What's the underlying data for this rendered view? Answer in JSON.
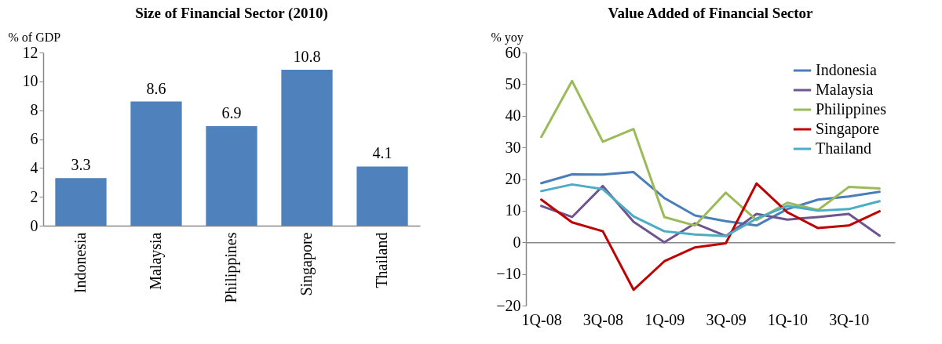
{
  "chart_data": [
    {
      "type": "bar",
      "title": "Size of Financial Sector (2010)",
      "ylabel": "% of GDP",
      "categories": [
        "Indonesia",
        "Malaysia",
        "Philippines",
        "Singapore",
        "Thailand"
      ],
      "values": [
        3.3,
        8.6,
        6.9,
        10.8,
        4.1
      ],
      "color": "#4f81bd",
      "ylim": [
        0,
        12
      ],
      "yticks": [
        0,
        2,
        4,
        6,
        8,
        10,
        12
      ],
      "data_labels": true
    },
    {
      "type": "line",
      "title": "Value Added of Financial Sector",
      "ylabel": "% yoy",
      "categories": [
        "1Q-08",
        null,
        "3Q-08",
        null,
        "1Q-09",
        null,
        "3Q-09",
        null,
        "1Q-10",
        null,
        "3Q-10",
        null
      ],
      "ylim": [
        -20,
        60
      ],
      "yticks": [
        -20,
        -10,
        0,
        10,
        20,
        30,
        40,
        50,
        60
      ],
      "legend": "top right",
      "series": [
        {
          "name": "Indonesia",
          "color": "#4a7ebb",
          "values": [
            18.7,
            21.5,
            21.4,
            22.2,
            14,
            8.5,
            6.7,
            5.3,
            10.5,
            13.5,
            14.5,
            16
          ]
        },
        {
          "name": "Malaysia",
          "color": "#6f5590",
          "values": [
            11.5,
            8,
            17.8,
            6.5,
            0,
            6,
            2,
            9,
            7.2,
            8,
            9,
            2.1
          ]
        },
        {
          "name": "Philippines",
          "color": "#9bbb59",
          "values": [
            33.3,
            51,
            31.8,
            35.8,
            8,
            5.3,
            15.7,
            7,
            12.5,
            10.2,
            17.5,
            17
          ]
        },
        {
          "name": "Singapore",
          "color": "#c00000",
          "values": [
            13.5,
            6.3,
            3.5,
            -15,
            -6,
            -1.6,
            -0.3,
            18.6,
            9.5,
            4.5,
            5.3,
            9.8
          ]
        },
        {
          "name": "Thailand",
          "color": "#4bacc6",
          "values": [
            16.2,
            18.3,
            16.8,
            8.2,
            3.5,
            2.5,
            2,
            7.5,
            11.5,
            10,
            10.5,
            13
          ]
        }
      ]
    }
  ]
}
